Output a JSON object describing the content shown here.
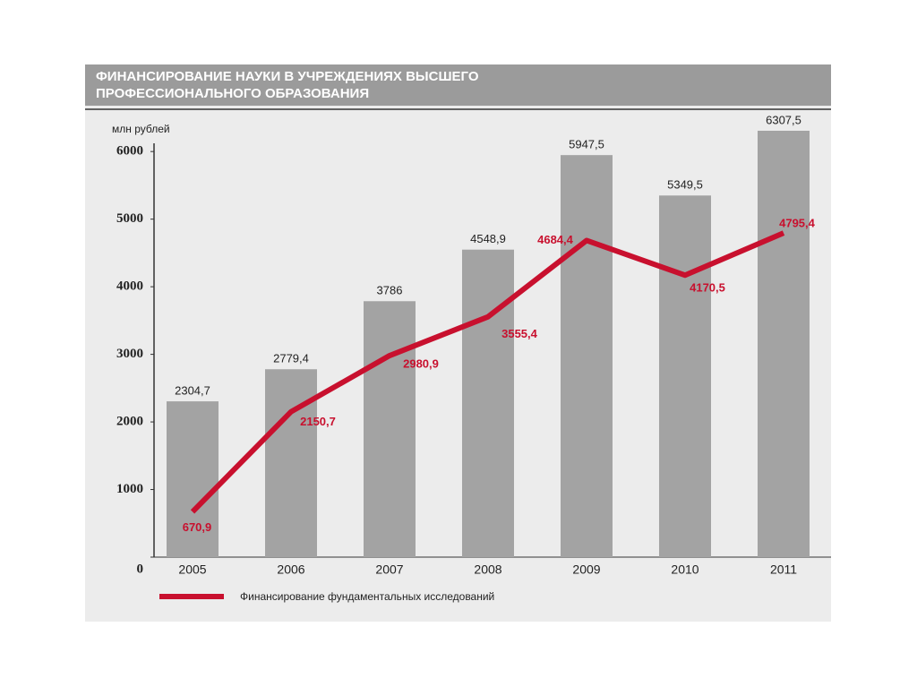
{
  "chart_data": {
    "type": "bar",
    "title": [
      "ФИНАНСИРОВАНИЕ НАУКИ В УЧРЕЖДЕНИЯХ ВЫСШЕГО",
      "ПРОФЕССИОНАЛЬНОГО ОБРАЗОВАНИЯ"
    ],
    "y_label": "млн рублей",
    "categories": [
      "2005",
      "2006",
      "2007",
      "2008",
      "2009",
      "2010",
      "2011"
    ],
    "series": [
      {
        "type": "bar",
        "color": "#a3a3a3",
        "values": [
          2304.7,
          2779.4,
          3786,
          4548.9,
          5947.5,
          5349.5,
          6307.5
        ],
        "value_labels": [
          "2304,7",
          "2779,4",
          "3786",
          "4548,9",
          "5947,5",
          "5349,5",
          "6307,5"
        ]
      },
      {
        "type": "line",
        "name": "Финансирование фундаментальных исследований",
        "color": "#c8102e",
        "values": [
          670.9,
          2150.7,
          2980.9,
          3555.4,
          4684.4,
          4170.5,
          4795.4
        ],
        "value_labels": [
          "670,9",
          "2150,7",
          "2980,9",
          "3555,4",
          "4684,4",
          "4170,5",
          "4795,4"
        ]
      }
    ],
    "ylim": [
      0,
      6400
    ],
    "yticks": [
      0,
      1000,
      2000,
      3000,
      4000,
      5000,
      6000
    ],
    "grid": false,
    "legend": "bottom-left"
  }
}
